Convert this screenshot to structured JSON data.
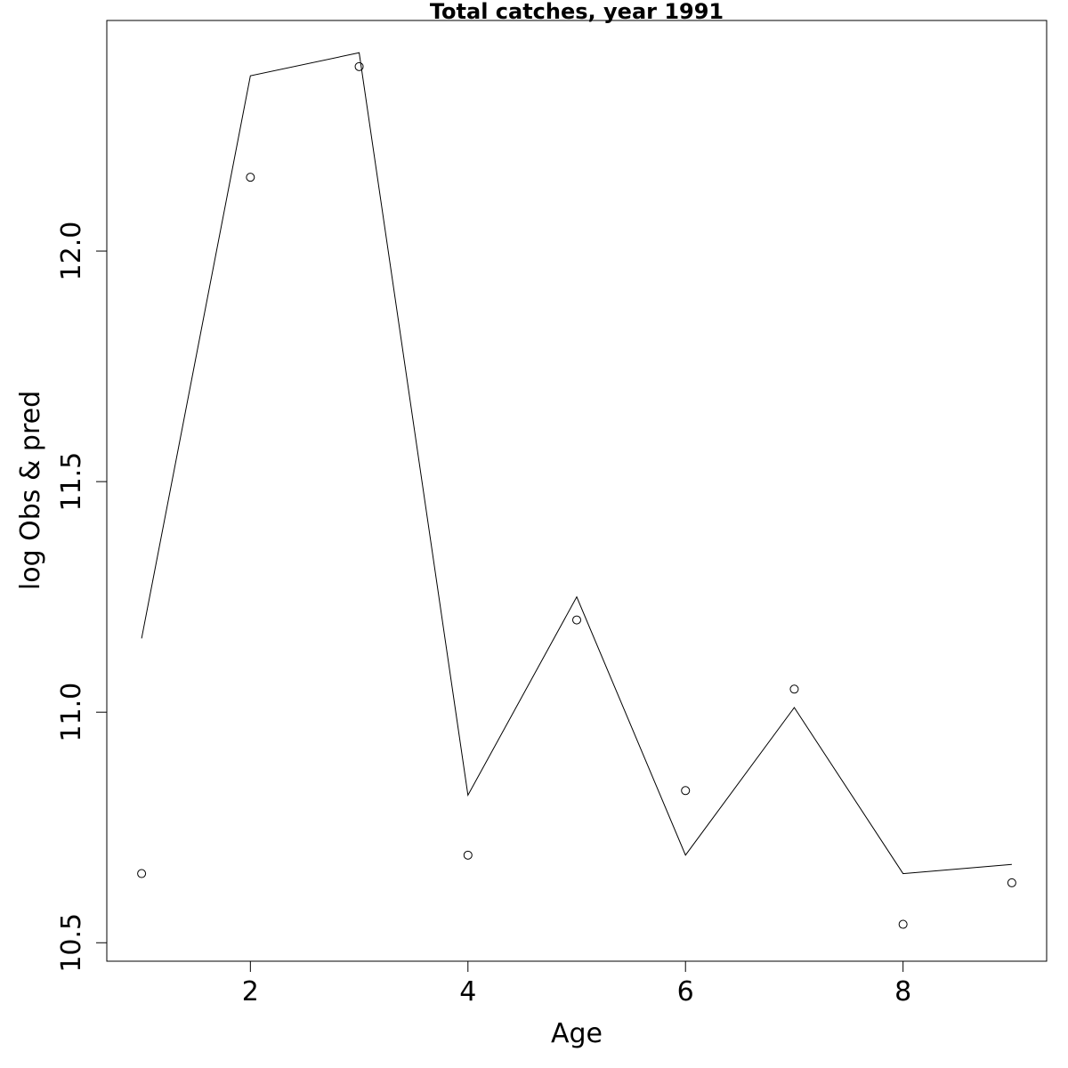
{
  "chart_data": {
    "type": "line",
    "title": "Total catches, year 1991",
    "xlabel": "Age",
    "ylabel": "log Obs & pred",
    "x": [
      1,
      2,
      3,
      4,
      5,
      6,
      7,
      8,
      9
    ],
    "xlim": [
      0.68,
      9.32
    ],
    "ylim": [
      10.46,
      12.5
    ],
    "xticks": [
      2,
      4,
      6,
      8
    ],
    "yticks": [
      10.5,
      11.0,
      11.5,
      12.0
    ],
    "xtick_labels": [
      "2",
      "4",
      "6",
      "8"
    ],
    "ytick_labels": [
      "10.5",
      "11.0",
      "11.5",
      "12.0"
    ],
    "grid": false,
    "series": [
      {
        "role": "predicted",
        "style": "line",
        "values": [
          11.16,
          12.38,
          12.43,
          10.82,
          11.25,
          10.69,
          11.01,
          10.65,
          10.67
        ]
      },
      {
        "role": "observed",
        "style": "open-circle",
        "values": [
          10.65,
          12.16,
          12.4,
          10.69,
          11.2,
          10.83,
          11.05,
          10.54,
          10.63
        ]
      }
    ]
  }
}
